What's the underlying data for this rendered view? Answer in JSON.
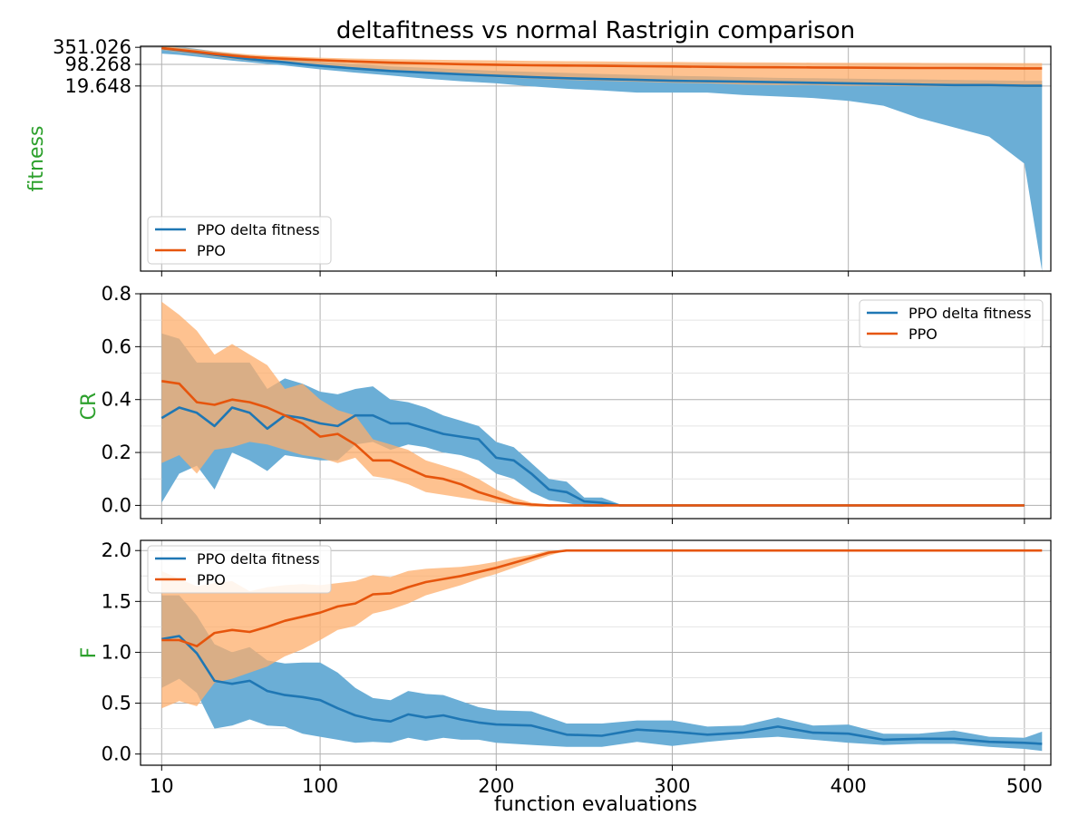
{
  "figure": {
    "title": "deltafitness vs normal Rastrigin comparison",
    "xlabel": "function evaluations"
  },
  "colors": {
    "blue_line": "#1f77b4",
    "blue_band": "#6baed6",
    "orange_line": "#e6550d",
    "orange_band": "#fdae6b",
    "ylabel": "#2ca02c"
  },
  "chart_data": [
    {
      "type": "line",
      "title": "deltafitness vs normal Rastrigin comparison",
      "ylabel": "fitness",
      "xlabel": "",
      "yscale": "log",
      "xlim": [
        -2,
        515
      ],
      "xticks": [
        10,
        100,
        200,
        300,
        400,
        500
      ],
      "yticks": [
        {
          "value": 351.026,
          "label": "351.026"
        },
        {
          "value": 98.268,
          "label": "98.268"
        },
        {
          "value": 19.648,
          "label": "19.648"
        }
      ],
      "grid": true,
      "legend": {
        "placement": "bottom-left",
        "entries": [
          "PPO delta fitness",
          "PPO"
        ]
      },
      "series": [
        {
          "name": "PPO delta fitness",
          "x": [
            10,
            20,
            30,
            40,
            50,
            60,
            70,
            80,
            90,
            100,
            120,
            140,
            160,
            180,
            200,
            220,
            240,
            260,
            280,
            300,
            320,
            340,
            360,
            380,
            400,
            420,
            440,
            460,
            480,
            500,
            510
          ],
          "mean": [
            330,
            280,
            240,
            200,
            170,
            145,
            130,
            115,
            100,
            88,
            72,
            60,
            53,
            47,
            42,
            38,
            35,
            33,
            31,
            29,
            28,
            27,
            26,
            25,
            24,
            23,
            22,
            21,
            21,
            20,
            20
          ],
          "lower": [
            220,
            200,
            175,
            150,
            130,
            115,
            102,
            90,
            78,
            68,
            53,
            43,
            34,
            28,
            24,
            19,
            16,
            14,
            12,
            12,
            12,
            10,
            9,
            8,
            6.5,
            4.5,
            1.8,
            0.9,
            0.45,
            0.06,
            2e-05
          ],
          "upper": [
            420,
            360,
            310,
            260,
            220,
            190,
            168,
            150,
            134,
            118,
            100,
            85,
            76,
            68,
            61,
            56,
            52,
            48,
            45,
            42,
            40,
            38,
            36,
            35,
            34,
            33,
            32,
            31,
            30,
            29,
            29
          ]
        },
        {
          "name": "PPO",
          "x": [
            10,
            20,
            30,
            40,
            50,
            60,
            70,
            80,
            90,
            100,
            120,
            140,
            160,
            180,
            200,
            220,
            240,
            260,
            280,
            300,
            320,
            340,
            360,
            380,
            400,
            420,
            440,
            460,
            480,
            500,
            510
          ],
          "mean": [
            330,
            290,
            250,
            215,
            190,
            170,
            158,
            150,
            142,
            135,
            122,
            112,
            106,
            100,
            96,
            92,
            90,
            88,
            86,
            84,
            82,
            80,
            79,
            78,
            77,
            76,
            75,
            75,
            74,
            73,
            73
          ],
          "lower": [
            290,
            245,
            210,
            175,
            150,
            130,
            120,
            110,
            100,
            90,
            70,
            58,
            50,
            43,
            38,
            34,
            31,
            29,
            27,
            25,
            24,
            22,
            21,
            21,
            20,
            20,
            19,
            19,
            19,
            18,
            18
          ],
          "upper": [
            400,
            350,
            300,
            260,
            230,
            205,
            190,
            180,
            170,
            162,
            152,
            145,
            140,
            136,
            132,
            128,
            125,
            123,
            120,
            118,
            116,
            115,
            113,
            112,
            111,
            110,
            110,
            109,
            109,
            108,
            108
          ]
        }
      ]
    },
    {
      "type": "line",
      "ylabel": "CR",
      "xlabel": "",
      "xlim": [
        -2,
        515
      ],
      "ylim": [
        -0.05,
        0.8
      ],
      "xticks": [
        10,
        100,
        200,
        300,
        400,
        500
      ],
      "yticks": [
        {
          "value": 0.0,
          "label": "0.0"
        },
        {
          "value": 0.2,
          "label": "0.2"
        },
        {
          "value": 0.4,
          "label": "0.4"
        },
        {
          "value": 0.6,
          "label": "0.6"
        },
        {
          "value": 0.8,
          "label": "0.8"
        }
      ],
      "grid": true,
      "legend": {
        "placement": "top-right",
        "entries": [
          "PPO delta fitness",
          "PPO"
        ]
      },
      "series": [
        {
          "name": "PPO delta fitness",
          "x": [
            10,
            20,
            30,
            40,
            50,
            60,
            70,
            80,
            90,
            100,
            110,
            120,
            130,
            140,
            150,
            160,
            170,
            180,
            190,
            200,
            210,
            220,
            230,
            240,
            250,
            260,
            270,
            280,
            300,
            350,
            400,
            450,
            500
          ],
          "mean": [
            0.33,
            0.37,
            0.35,
            0.3,
            0.37,
            0.35,
            0.29,
            0.34,
            0.33,
            0.31,
            0.3,
            0.34,
            0.34,
            0.31,
            0.31,
            0.29,
            0.27,
            0.26,
            0.25,
            0.18,
            0.17,
            0.12,
            0.06,
            0.05,
            0.015,
            0.01,
            0.0,
            0.0,
            0.0,
            0.0,
            0.0,
            0.0,
            0.0
          ],
          "lower": [
            0.01,
            0.12,
            0.15,
            0.06,
            0.2,
            0.17,
            0.13,
            0.19,
            0.18,
            0.17,
            0.17,
            0.23,
            0.24,
            0.21,
            0.23,
            0.22,
            0.2,
            0.19,
            0.17,
            0.12,
            0.1,
            0.05,
            0.02,
            0.01,
            -0.005,
            -0.005,
            0.0,
            0.0,
            0.0,
            0.0,
            0.0,
            0.0,
            0.0
          ],
          "upper": [
            0.65,
            0.63,
            0.54,
            0.54,
            0.54,
            0.54,
            0.44,
            0.48,
            0.46,
            0.43,
            0.42,
            0.44,
            0.45,
            0.4,
            0.39,
            0.37,
            0.34,
            0.32,
            0.3,
            0.24,
            0.22,
            0.16,
            0.1,
            0.09,
            0.03,
            0.03,
            0.005,
            0.0,
            0.0,
            0.0,
            0.0,
            0.0,
            0.0
          ]
        },
        {
          "name": "PPO",
          "x": [
            10,
            20,
            30,
            40,
            50,
            60,
            70,
            80,
            90,
            100,
            110,
            120,
            130,
            140,
            150,
            160,
            170,
            180,
            190,
            200,
            210,
            220,
            230,
            240,
            250,
            260,
            270,
            280,
            300,
            350,
            400,
            450,
            500
          ],
          "mean": [
            0.47,
            0.46,
            0.39,
            0.38,
            0.4,
            0.39,
            0.37,
            0.34,
            0.31,
            0.26,
            0.27,
            0.23,
            0.17,
            0.17,
            0.14,
            0.11,
            0.1,
            0.08,
            0.05,
            0.03,
            0.01,
            0.003,
            0.0,
            0.0,
            0.0,
            0.0,
            0.0,
            0.0,
            0.0,
            0.0,
            0.0,
            0.0,
            0.0
          ],
          "lower": [
            0.16,
            0.19,
            0.12,
            0.21,
            0.22,
            0.24,
            0.23,
            0.21,
            0.19,
            0.18,
            0.16,
            0.18,
            0.11,
            0.1,
            0.08,
            0.05,
            0.04,
            0.03,
            0.02,
            0.01,
            0.002,
            -0.005,
            -0.005,
            0.0,
            0.0,
            0.0,
            0.0,
            0.0,
            0.0,
            0.0,
            0.0,
            0.0,
            0.0
          ],
          "upper": [
            0.77,
            0.72,
            0.66,
            0.57,
            0.61,
            0.57,
            0.53,
            0.44,
            0.46,
            0.4,
            0.36,
            0.34,
            0.25,
            0.23,
            0.21,
            0.17,
            0.15,
            0.13,
            0.1,
            0.06,
            0.03,
            0.01,
            0.003,
            0.0,
            0.0,
            0.0,
            0.0,
            0.0,
            0.0,
            0.0,
            0.0,
            0.0,
            0.0
          ]
        }
      ]
    },
    {
      "type": "line",
      "ylabel": "F",
      "xlabel": "function evaluations",
      "xlim": [
        -2,
        515
      ],
      "ylim": [
        -0.11,
        2.1
      ],
      "xticks": [
        10,
        100,
        200,
        300,
        400,
        500
      ],
      "xticklabels": [
        "10",
        "100",
        "200",
        "300",
        "400",
        "500"
      ],
      "yticks": [
        {
          "value": 0.0,
          "label": "0.0"
        },
        {
          "value": 0.5,
          "label": "0.5"
        },
        {
          "value": 1.0,
          "label": "1.0"
        },
        {
          "value": 1.5,
          "label": "1.5"
        },
        {
          "value": 2.0,
          "label": "2.0"
        }
      ],
      "grid": true,
      "legend": {
        "placement": "top-left",
        "entries": [
          "PPO delta fitness",
          "PPO"
        ]
      },
      "series": [
        {
          "name": "PPO delta fitness",
          "x": [
            10,
            20,
            30,
            40,
            50,
            60,
            70,
            80,
            90,
            100,
            110,
            120,
            130,
            140,
            150,
            160,
            170,
            180,
            190,
            200,
            220,
            240,
            260,
            280,
            300,
            320,
            340,
            360,
            380,
            400,
            420,
            440,
            460,
            480,
            500,
            510
          ],
          "mean": [
            1.13,
            1.16,
            0.99,
            0.72,
            0.69,
            0.72,
            0.62,
            0.58,
            0.56,
            0.53,
            0.45,
            0.38,
            0.34,
            0.32,
            0.39,
            0.36,
            0.38,
            0.34,
            0.31,
            0.29,
            0.28,
            0.19,
            0.18,
            0.24,
            0.22,
            0.19,
            0.21,
            0.27,
            0.21,
            0.2,
            0.14,
            0.15,
            0.15,
            0.12,
            0.11,
            0.1
          ],
          "lower": [
            0.65,
            0.74,
            0.6,
            0.25,
            0.28,
            0.34,
            0.28,
            0.27,
            0.2,
            0.17,
            0.14,
            0.11,
            0.12,
            0.11,
            0.16,
            0.13,
            0.16,
            0.14,
            0.14,
            0.11,
            0.09,
            0.07,
            0.07,
            0.12,
            0.08,
            0.12,
            0.15,
            0.17,
            0.14,
            0.11,
            0.09,
            0.1,
            0.1,
            0.07,
            0.05,
            0.03
          ],
          "upper": [
            1.56,
            1.56,
            1.36,
            1.08,
            1.0,
            1.05,
            0.92,
            0.89,
            0.9,
            0.9,
            0.8,
            0.65,
            0.55,
            0.53,
            0.62,
            0.59,
            0.58,
            0.52,
            0.46,
            0.43,
            0.42,
            0.3,
            0.3,
            0.33,
            0.33,
            0.27,
            0.28,
            0.36,
            0.28,
            0.29,
            0.2,
            0.2,
            0.23,
            0.17,
            0.16,
            0.22
          ]
        },
        {
          "name": "PPO",
          "x": [
            10,
            20,
            30,
            40,
            50,
            60,
            70,
            80,
            90,
            100,
            110,
            120,
            130,
            140,
            150,
            160,
            170,
            180,
            190,
            200,
            210,
            220,
            230,
            240,
            250,
            260,
            280,
            300,
            350,
            400,
            450,
            500,
            510
          ],
          "mean": [
            1.12,
            1.12,
            1.06,
            1.19,
            1.22,
            1.2,
            1.25,
            1.31,
            1.35,
            1.39,
            1.45,
            1.48,
            1.57,
            1.58,
            1.64,
            1.69,
            1.72,
            1.75,
            1.79,
            1.83,
            1.88,
            1.93,
            1.98,
            2.0,
            2.0,
            2.0,
            2.0,
            2.0,
            2.0,
            2.0,
            2.0,
            2.0,
            2.0
          ],
          "lower": [
            0.45,
            0.52,
            0.47,
            0.7,
            0.74,
            0.8,
            0.86,
            0.96,
            1.03,
            1.12,
            1.22,
            1.26,
            1.38,
            1.42,
            1.48,
            1.56,
            1.61,
            1.66,
            1.72,
            1.77,
            1.83,
            1.89,
            1.95,
            2.0,
            2.0,
            2.0,
            2.0,
            2.0,
            2.0,
            2.0,
            2.0,
            2.0,
            2.0
          ],
          "upper": [
            1.8,
            1.72,
            1.65,
            1.68,
            1.7,
            1.6,
            1.64,
            1.66,
            1.67,
            1.66,
            1.68,
            1.7,
            1.76,
            1.74,
            1.8,
            1.82,
            1.83,
            1.84,
            1.86,
            1.89,
            1.93,
            1.96,
            2.0,
            2.0,
            2.0,
            2.0,
            2.0,
            2.0,
            2.0,
            2.0,
            2.0,
            2.0,
            2.0
          ]
        }
      ]
    }
  ]
}
